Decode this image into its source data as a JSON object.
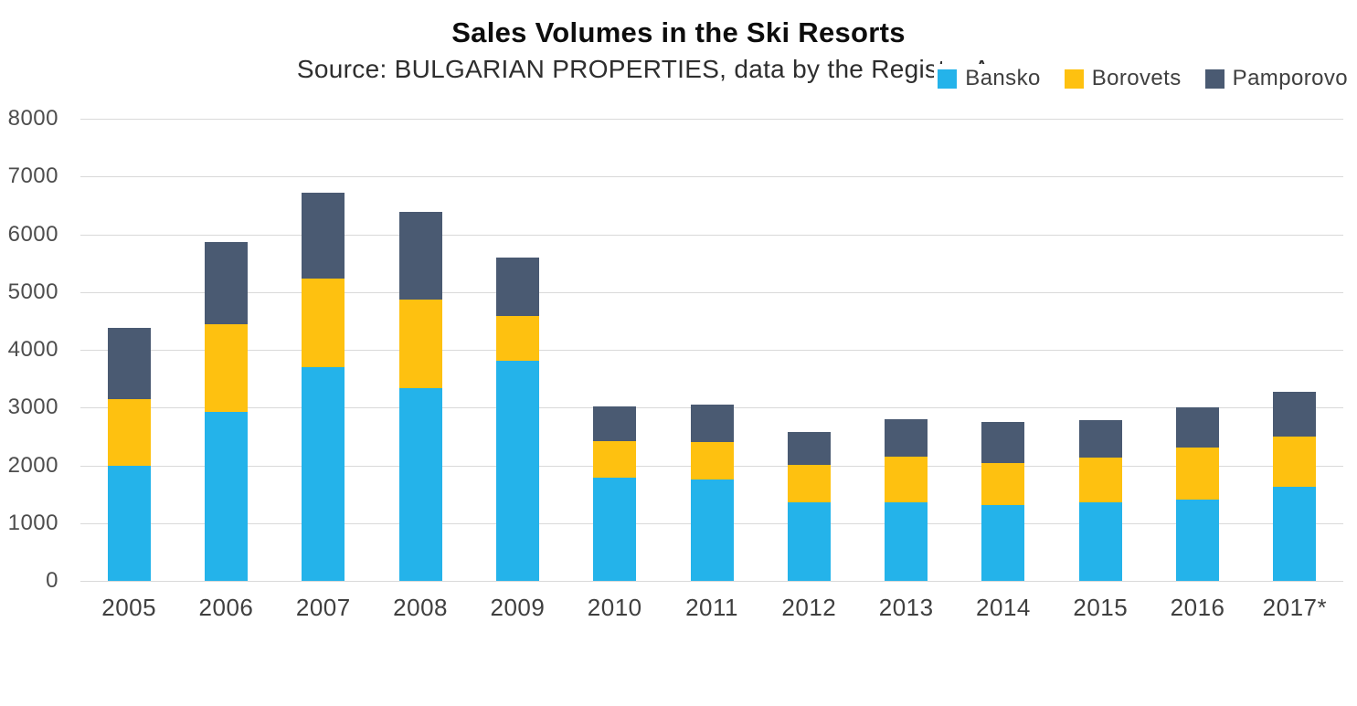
{
  "header": {
    "title": "Sales Volumes in the Ski Resorts",
    "subtitle": "Source: BULGARIAN PROPERTIES, data by the Registry Agency"
  },
  "chart_data": {
    "type": "bar",
    "stacked": true,
    "title": "Sales Volumes in the Ski Resorts",
    "subtitle": "Source: BULGARIAN PROPERTIES, data by the Registry Agency",
    "xlabel": "",
    "ylabel": "",
    "grid": true,
    "legend_position": "top-right",
    "ylim": [
      0,
      8000
    ],
    "yticks": [
      0,
      1000,
      2000,
      3000,
      4000,
      5000,
      6000,
      7000,
      8000
    ],
    "categories": [
      "2005",
      "2006",
      "2007",
      "2008",
      "2009",
      "2010",
      "2011",
      "2012",
      "2013",
      "2014",
      "2015",
      "2016",
      "2017*"
    ],
    "series": [
      {
        "name": "Bansko",
        "color": "#24B3EA",
        "values": [
          2000,
          2925,
          3700,
          3330,
          3810,
          1790,
          1760,
          1360,
          1360,
          1310,
          1360,
          1410,
          1630
        ]
      },
      {
        "name": "Borovets",
        "color": "#FEC110",
        "values": [
          1150,
          1520,
          1530,
          1540,
          780,
          630,
          640,
          650,
          790,
          730,
          770,
          900,
          870
        ]
      },
      {
        "name": "Pamporovo",
        "color": "#4A5A72",
        "values": [
          1230,
          1420,
          1490,
          1520,
          1010,
          600,
          650,
          570,
          650,
          710,
          650,
          690,
          780
        ]
      }
    ],
    "totals": [
      4380,
      5865,
      6720,
      6390,
      5600,
      3020,
      3050,
      2580,
      2800,
      2750,
      2780,
      3000,
      3280
    ]
  }
}
